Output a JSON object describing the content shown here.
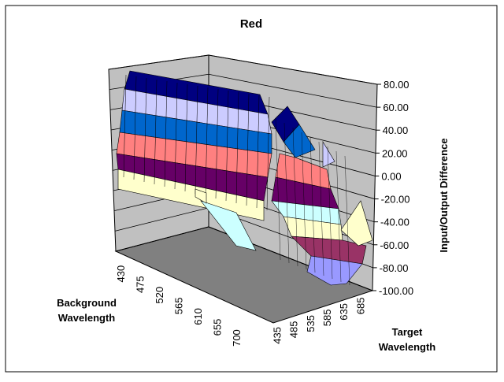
{
  "chart_data": {
    "type": "surface",
    "title": "Red",
    "zlabel": "Input/Output Difference",
    "background_axis": {
      "label_line1": "Background",
      "label_line2": "Wavelength",
      "ticks": [
        "430",
        "475",
        "520",
        "565",
        "610",
        "655",
        "700"
      ]
    },
    "target_axis": {
      "label_line1": "Target",
      "label_line2": "Wavelength",
      "ticks": [
        "435",
        "485",
        "535",
        "585",
        "635",
        "685"
      ]
    },
    "z_axis": {
      "ticks": [
        "80.00",
        "60.00",
        "40.00",
        "20.00",
        "0.00",
        "-20.00",
        "-40.00",
        "-60.00",
        "-80.00",
        "-100.00"
      ],
      "min": -100,
      "max": 80,
      "step": 20
    },
    "legend_bands": [
      {
        "range": [
          -100,
          -80
        ],
        "color": "#9999ff"
      },
      {
        "range": [
          -80,
          -60
        ],
        "color": "#993366"
      },
      {
        "range": [
          -60,
          -40
        ],
        "color": "#ffffcc"
      },
      {
        "range": [
          -40,
          -20
        ],
        "color": "#ccffff"
      },
      {
        "range": [
          -20,
          0
        ],
        "color": "#660066"
      },
      {
        "range": [
          0,
          20
        ],
        "color": "#ff8080"
      },
      {
        "range": [
          20,
          40
        ],
        "color": "#0066cc"
      },
      {
        "range": [
          40,
          60
        ],
        "color": "#ccccff"
      },
      {
        "range": [
          60,
          80
        ],
        "color": "#000080"
      }
    ],
    "colors": {
      "walls": "#c0c0c0",
      "floor": "#808080",
      "grid": "#000000"
    }
  }
}
